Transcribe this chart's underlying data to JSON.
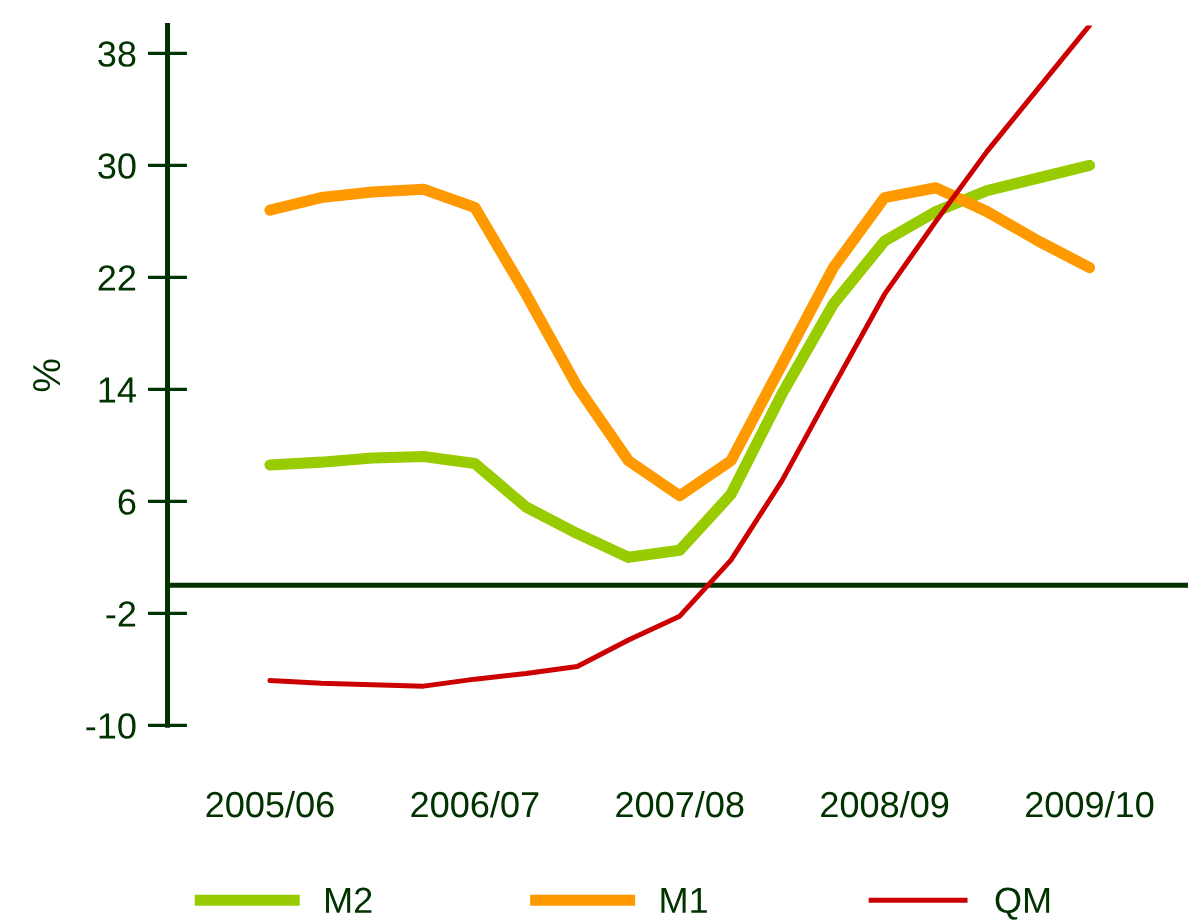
{
  "chart_data": {
    "type": "line",
    "ylabel": "%",
    "categories": [
      "2005/06",
      null,
      null,
      null,
      "2006/07",
      null,
      null,
      null,
      "2007/08",
      null,
      null,
      null,
      "2008/09",
      null,
      null,
      null,
      "2009/10"
    ],
    "ylim": [
      -10,
      40
    ],
    "yticks": [
      -10,
      -2,
      6,
      14,
      22,
      30,
      38
    ],
    "grid": false,
    "legend": "bottom",
    "marker": "none",
    "line_style": "solid",
    "series": [
      {
        "name": "M2",
        "color": "#99cc00",
        "values": [
          8.6,
          8.8,
          9.1,
          9.2,
          8.7,
          5.6,
          3.7,
          2.0,
          2.5,
          6.5,
          13.7,
          20.1,
          24.6,
          26.7,
          28.2,
          29.1,
          30.0
        ]
      },
      {
        "name": "M1",
        "color": "#ff9900",
        "values": [
          26.8,
          27.7,
          28.1,
          28.3,
          27.0,
          20.8,
          14.2,
          8.9,
          6.4,
          8.9,
          15.8,
          22.7,
          27.7,
          28.4,
          26.7,
          24.6,
          22.7
        ]
      },
      {
        "name": "QM",
        "color": "#cc0000",
        "values": [
          -6.8,
          -7.0,
          -7.1,
          -7.2,
          -6.7,
          -6.3,
          -5.8,
          -3.9,
          -2.2,
          1.8,
          7.5,
          14.2,
          20.8,
          26.0,
          31.0,
          35.5,
          40.0
        ]
      }
    ]
  }
}
